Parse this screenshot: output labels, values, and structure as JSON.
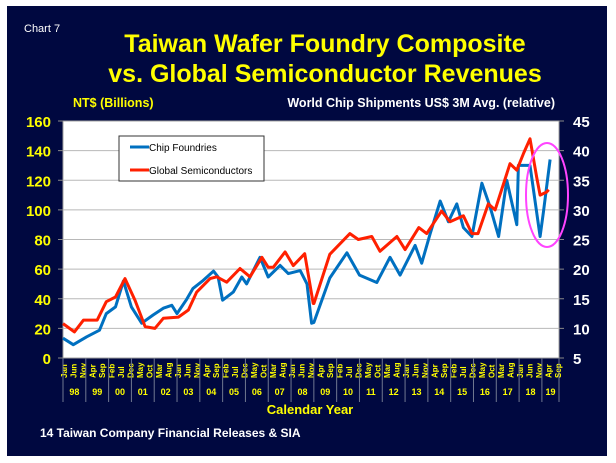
{
  "chart_label": "Chart  7",
  "chart_data": {
    "type": "line",
    "title": [
      "Taiwan Wafer Foundry Composite",
      "vs. Global Semiconductor Revenues"
    ],
    "ylabel_left": "NT$ (Billions)",
    "ylabel_right": "World Chip Shipments US$ 3M Avg. (relative)",
    "xlabel": "Calendar Year",
    "xlim": [
      1998.0,
      2019.75
    ],
    "ylim_left": [
      0,
      160
    ],
    "ylim_right": [
      5,
      45
    ],
    "yticks_left": [
      "0",
      "20",
      "40",
      "60",
      "80",
      "100",
      "120",
      "140",
      "160"
    ],
    "yticks_right": [
      "5",
      "10",
      "15",
      "20",
      "25",
      "30",
      "35",
      "40",
      "45"
    ],
    "month_labels": [
      "Jan",
      "Jun",
      "Nov",
      "Apr",
      "Sep",
      "Feb",
      "Jul",
      "Dec",
      "May",
      "Oct",
      "Mar",
      "Aug"
    ],
    "year_labels": [
      "98",
      "99",
      "00",
      "01",
      "02",
      "03",
      "04",
      "05",
      "06",
      "07",
      "08",
      "09",
      "10",
      "11",
      "12",
      "13",
      "14",
      "15",
      "16",
      "17",
      "18",
      "19"
    ],
    "grid": true,
    "legend_position": "top-left",
    "series": [
      {
        "name": "Chip Foundries",
        "axis": "left",
        "color": "#0070c0",
        "x": [
          1998.0,
          1998.45,
          1999.04,
          1999.6,
          1999.9,
          2000.3,
          2000.65,
          2001.0,
          2001.45,
          2001.95,
          2002.4,
          2002.77,
          2003.0,
          2003.4,
          2003.7,
          2004.15,
          2004.6,
          2004.8,
          2005.0,
          2005.47,
          2005.84,
          2006.05,
          2006.64,
          2007.0,
          2007.52,
          2007.88,
          2008.4,
          2008.7,
          2008.9,
          2009.0,
          2009.7,
          2010.45,
          2011.0,
          2011.76,
          2012.34,
          2012.78,
          2013.44,
          2013.73,
          2014.1,
          2014.54,
          2014.9,
          2015.27,
          2015.56,
          2015.93,
          2016.37,
          2016.73,
          2017.1,
          2017.46,
          2017.9,
          2017.97,
          2018.48,
          2018.92,
          2019.07,
          2019.36
        ],
        "y": [
          13.4,
          9,
          14.3,
          18.8,
          30,
          34.5,
          52,
          34.5,
          23.5,
          29,
          33.6,
          35.6,
          30,
          39,
          47,
          52.4,
          58.7,
          54.7,
          39,
          44.6,
          54.7,
          50,
          68,
          54.7,
          62.5,
          57,
          59,
          50,
          23.5,
          24,
          54,
          71,
          56,
          51,
          68,
          56,
          76,
          64,
          84,
          106,
          92,
          104,
          88,
          82,
          118,
          102,
          82,
          120,
          90,
          130,
          130,
          82,
          99,
          134
        ]
      },
      {
        "name": "Global Semiconductors",
        "axis": "right",
        "color": "#ff2000",
        "x": [
          1998.0,
          1998.5,
          1998.9,
          1999.5,
          1999.9,
          2000.3,
          2000.72,
          2001.16,
          2001.6,
          2002.03,
          2002.4,
          2003.06,
          2003.5,
          2003.86,
          2004.45,
          2004.74,
          2005.18,
          2005.76,
          2006.2,
          2006.72,
          2007.0,
          2007.22,
          2007.74,
          2008.1,
          2008.6,
          2008.97,
          2009.0,
          2009.7,
          2010.58,
          2010.95,
          2011.54,
          2011.9,
          2012.64,
          2013.0,
          2013.6,
          2013.95,
          2014.6,
          2014.97,
          2015.56,
          2015.93,
          2016.2,
          2016.65,
          2016.95,
          2017.6,
          2017.9,
          2018.2,
          2018.48,
          2018.77,
          2018.92,
          2019.2,
          2019.3
        ],
        "y": [
          10.8,
          9.4,
          11.4,
          11.4,
          14.5,
          15.3,
          18.4,
          14.7,
          10.3,
          10,
          11.7,
          11.9,
          13.1,
          16.1,
          18.4,
          18.7,
          17.8,
          20.1,
          18.7,
          22,
          20.3,
          20.3,
          22.9,
          20.6,
          22.6,
          14.2,
          14.2,
          22.5,
          26,
          25,
          25.5,
          23,
          25.5,
          23.3,
          27,
          26,
          29.8,
          28,
          29,
          26,
          26,
          31,
          30,
          37.8,
          36.7,
          39.6,
          42,
          35.5,
          32.5,
          33,
          33.4
        ]
      }
    ]
  },
  "footer": "14 Taiwan Company Financial Releases & SIA",
  "colors": {
    "background": "#000840",
    "title": "#ffff00",
    "highlight_ellipse": "#ff44ff"
  }
}
